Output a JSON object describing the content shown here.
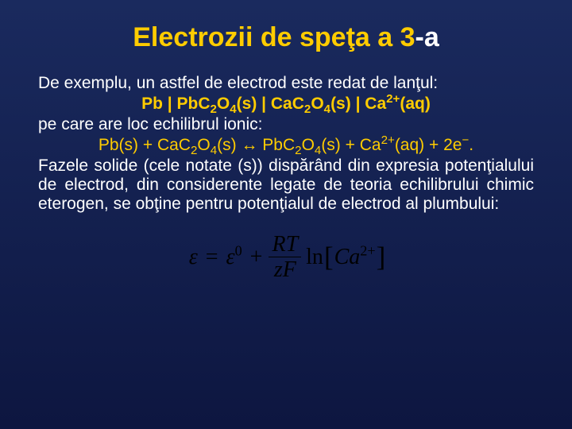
{
  "title": {
    "part1": "Electrozii de speţa a 3",
    "part2": "-a",
    "color_main": "#ffcc00",
    "color_suffix": "#ffffff",
    "fontsize": 34
  },
  "body": {
    "fontsize": 21,
    "color": "#ffffff",
    "accent_color": "#ffcc00",
    "intro": "De exemplu, un astfel de electrod este redat de lanţul:",
    "chain": {
      "p1": "Pb | PbC",
      "s1": "2",
      "p2": "O",
      "s2": "4",
      "p3": "(s) | CaC",
      "s3": "2",
      "p4": "O",
      "s4": "4",
      "p5": "(s) | Ca",
      "s5": "2+",
      "p6": "(aq)"
    },
    "line2": "pe care are loc echilibrul ionic:",
    "equation": {
      "e1": "Pb(s) + CaC",
      "sub1": "2",
      "e2": "O",
      "sub2": "4",
      "e3": "(s)  ↔  PbC",
      "sub3": "2",
      "e4": "O",
      "sub4": "4",
      "e5": "(s) + Ca",
      "sup1": "2+",
      "e6": "(aq) + 2e",
      "sup2": "−",
      "e7": "."
    },
    "paragraph": "Fazele solide (cele notate (s)) dispărând din expresia potenţialului de electrod, din considerente legate de teoria echilibrului chimic eterogen, se obţine pentru potenţialul de electrod al plumbului:"
  },
  "formula": {
    "fontsize": 28,
    "eps": "ε",
    "eq": "=",
    "eps0": "ε",
    "sup0": "0",
    "plus": "+",
    "num": "RT",
    "den": "zF",
    "ln": "ln",
    "lbrak": "[",
    "ca": "Ca",
    "ca_sup": "2+",
    "rbrak": "]",
    "color": "#000000"
  },
  "background": {
    "top": "#1a2a5e",
    "bottom": "#0d1640"
  }
}
